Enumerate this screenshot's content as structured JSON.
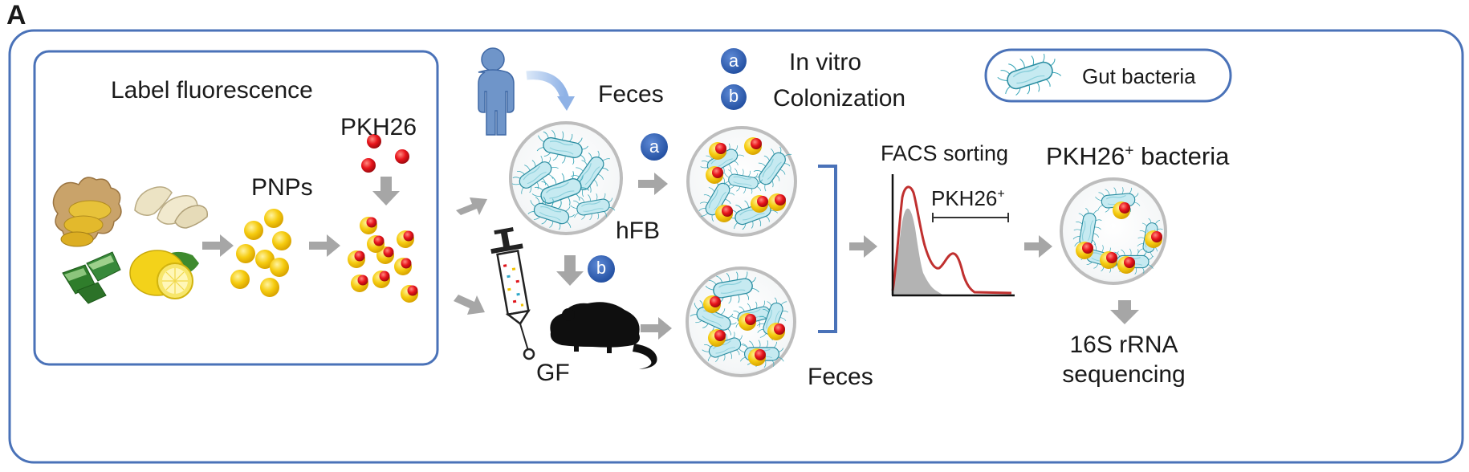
{
  "panel_label": "A",
  "colors": {
    "frame": "#4a72b8",
    "arrow_gray": "#a6a6a6",
    "bacteria_fill": "#bfe6ee",
    "bacteria_edge": "#2e93a8",
    "particle_yellow": "#f2c200",
    "dye_red": "#e0141b",
    "badge_blue": "#2f5fb0",
    "histogram_line": "#c0302f",
    "histogram_fill": "#b3b3b3"
  },
  "labels": {
    "label_fluorescence": "Label fluorescence",
    "pnps": "PNPs",
    "pkh26": "PKH26",
    "feces_top": "Feces",
    "hfb": "hFB",
    "gf": "GF",
    "feces_bottom": "Feces",
    "facs_sorting": "FACS sorting",
    "pkh26_gate": "PKH26",
    "pkh26_gate_sup": "+",
    "pkh26_bacteria_main": "PKH26",
    "pkh26_bacteria_sup": "+",
    "pkh26_bacteria_tail": " bacteria",
    "seq_line1": "16S rRNA",
    "seq_line2": "sequencing"
  },
  "legend": {
    "badge_a": "a",
    "badge_a_text": "In vitro",
    "badge_b": "b",
    "badge_b_text": "Colonization",
    "gut_bacteria": "Gut bacteria",
    "bacteria_icon": "gut-bacteria-icon"
  },
  "flow_badges": {
    "a": "a",
    "b": "b"
  },
  "icons": [
    "person-icon",
    "mouse-icon",
    "syringe-icon",
    "ginger-icon",
    "garlic-icon",
    "aloe-icon",
    "lemon-icon",
    "petri-dish-icon",
    "histogram-icon"
  ]
}
